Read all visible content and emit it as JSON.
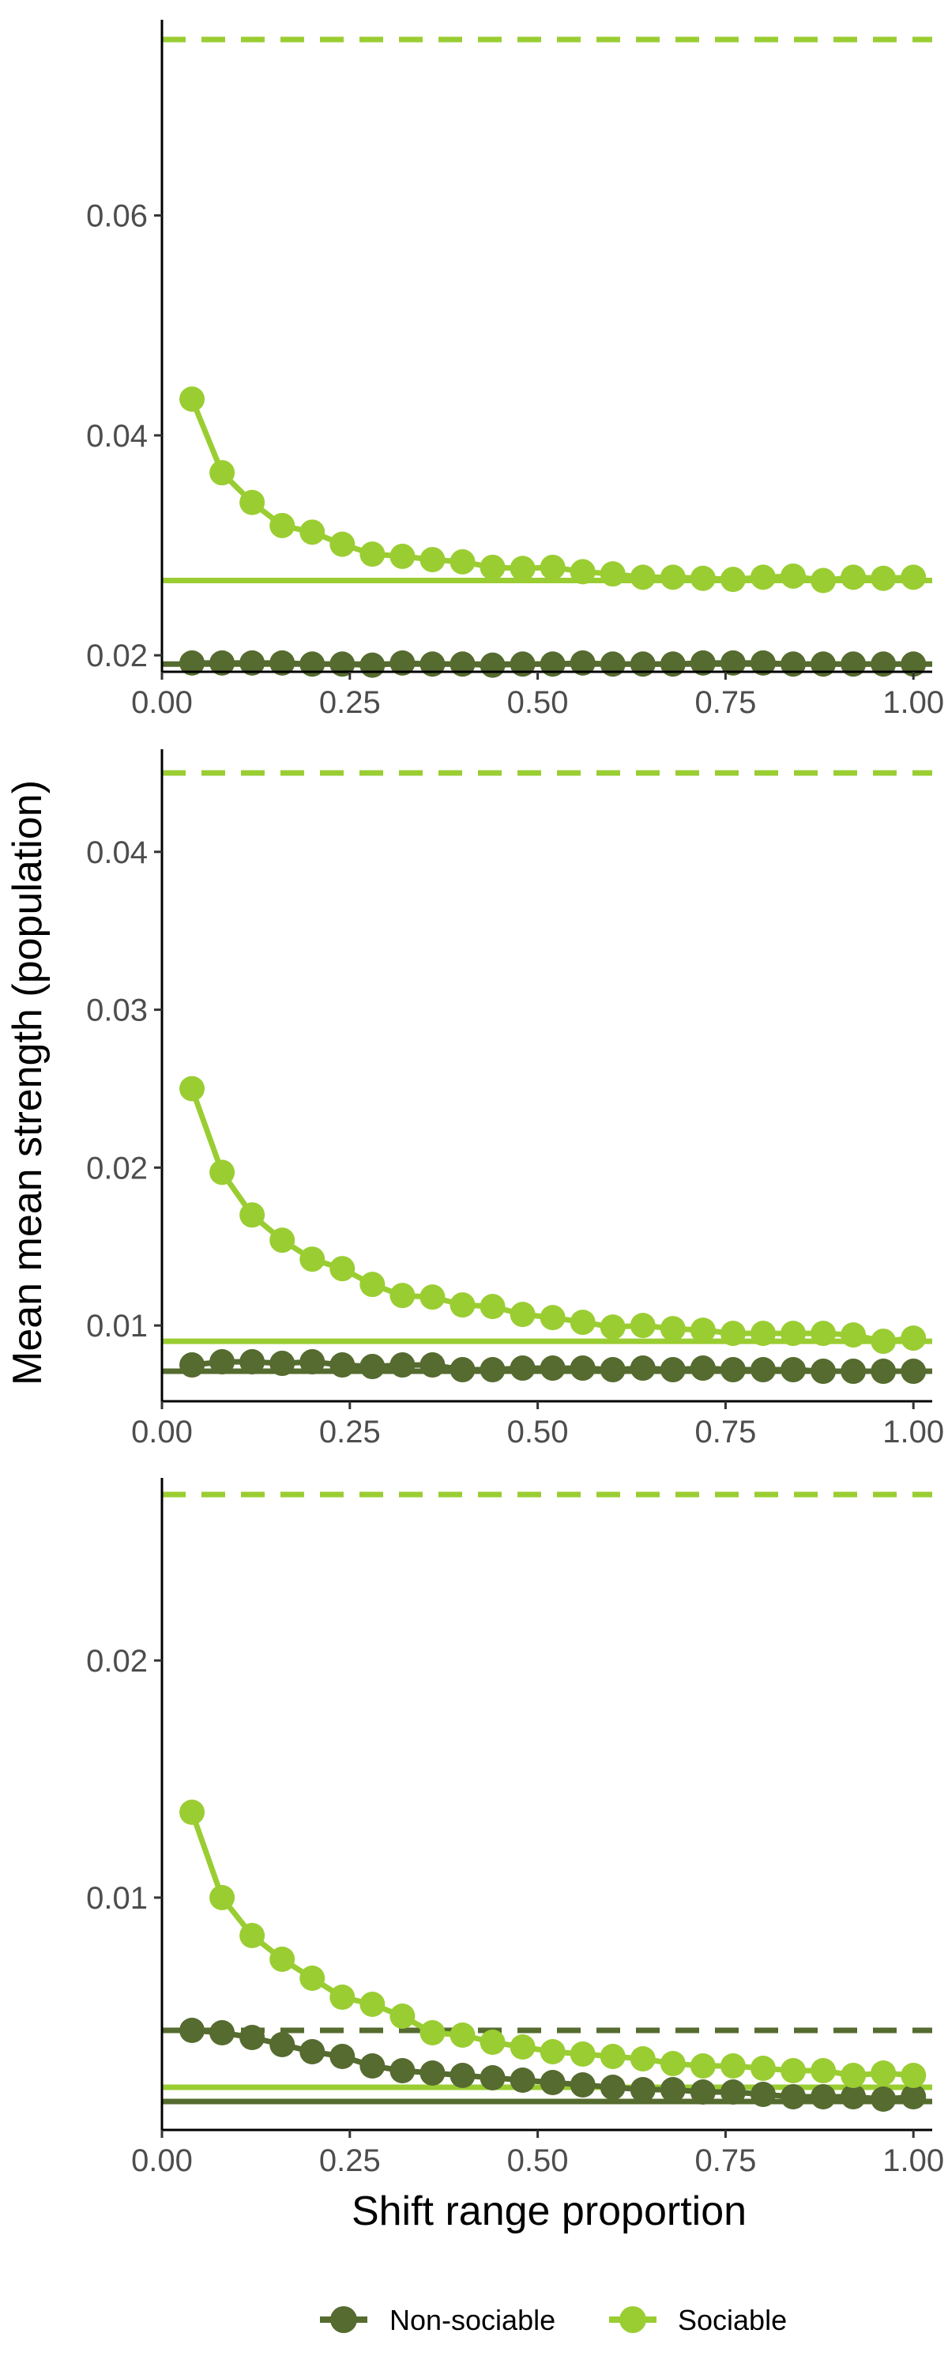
{
  "colors": {
    "non_sociable": "#556b2f",
    "sociable": "#9acd32",
    "axis": "#000000",
    "tick_label": "#4d4d4d"
  },
  "chart_data": [
    {
      "type": "line",
      "panel": 1,
      "xlim": [
        0,
        1.025
      ],
      "ylim": [
        0.0185,
        0.0778
      ],
      "x_ticks": [
        0,
        0.25,
        0.5,
        0.75,
        1
      ],
      "x_tick_labels": [
        "0.00",
        "0.25",
        "0.50",
        "0.75",
        "1.00"
      ],
      "y_ticks": [
        0.02,
        0.04,
        0.06
      ],
      "y_tick_labels": [
        "0.02",
        "0.04",
        "0.06"
      ],
      "x": [
        0.04,
        0.08,
        0.12,
        0.16,
        0.2,
        0.24,
        0.28,
        0.32,
        0.36,
        0.4,
        0.44,
        0.48,
        0.52,
        0.56,
        0.6,
        0.64,
        0.68,
        0.72,
        0.76,
        0.8,
        0.84,
        0.88,
        0.92,
        0.96,
        1.0
      ],
      "series": [
        {
          "name": "Non-sociable",
          "color": "#556b2f",
          "values": [
            0.0193,
            0.0193,
            0.0193,
            0.0193,
            0.0192,
            0.0192,
            0.0191,
            0.0193,
            0.0192,
            0.0192,
            0.0191,
            0.0192,
            0.0192,
            0.0193,
            0.0192,
            0.0192,
            0.0192,
            0.0193,
            0.0193,
            0.0193,
            0.0192,
            0.0192,
            0.0192,
            0.0192,
            0.0192
          ],
          "hline_solid": 0.0192
        },
        {
          "name": "Sociable",
          "color": "#9acd32",
          "values": [
            0.0433,
            0.0366,
            0.0339,
            0.0318,
            0.0312,
            0.0301,
            0.0292,
            0.029,
            0.0287,
            0.0285,
            0.028,
            0.0279,
            0.028,
            0.0276,
            0.0274,
            0.0271,
            0.0271,
            0.027,
            0.0269,
            0.0271,
            0.0272,
            0.0268,
            0.0271,
            0.027,
            0.0271
          ],
          "hline_solid": 0.0268,
          "hline_dashed": 0.076
        }
      ]
    },
    {
      "type": "line",
      "panel": 2,
      "xlim": [
        0,
        1.025
      ],
      "ylim": [
        0.0052,
        0.0465
      ],
      "x_ticks": [
        0,
        0.25,
        0.5,
        0.75,
        1
      ],
      "x_tick_labels": [
        "0.00",
        "0.25",
        "0.50",
        "0.75",
        "1.00"
      ],
      "y_ticks": [
        0.01,
        0.02,
        0.03,
        0.04
      ],
      "y_tick_labels": [
        "0.01",
        "0.02",
        "0.03",
        "0.04"
      ],
      "x": [
        0.04,
        0.08,
        0.12,
        0.16,
        0.2,
        0.24,
        0.28,
        0.32,
        0.36,
        0.4,
        0.44,
        0.48,
        0.52,
        0.56,
        0.6,
        0.64,
        0.68,
        0.72,
        0.76,
        0.8,
        0.84,
        0.88,
        0.92,
        0.96,
        1.0
      ],
      "series": [
        {
          "name": "Non-sociable",
          "color": "#556b2f",
          "values": [
            0.0075,
            0.0077,
            0.0077,
            0.0076,
            0.0077,
            0.0075,
            0.0074,
            0.0075,
            0.0075,
            0.0072,
            0.0072,
            0.0073,
            0.0073,
            0.0073,
            0.0072,
            0.0073,
            0.0072,
            0.0073,
            0.0072,
            0.0072,
            0.0072,
            0.0071,
            0.0071,
            0.0071,
            0.0071
          ],
          "hline_solid": 0.0071
        },
        {
          "name": "Sociable",
          "color": "#9acd32",
          "values": [
            0.025,
            0.0197,
            0.017,
            0.0154,
            0.0142,
            0.0136,
            0.0126,
            0.0119,
            0.0118,
            0.0113,
            0.0112,
            0.0107,
            0.0105,
            0.0102,
            0.0099,
            0.01,
            0.0098,
            0.0097,
            0.0095,
            0.0095,
            0.0095,
            0.0095,
            0.0094,
            0.009,
            0.0092
          ],
          "hline_solid": 0.009,
          "hline_dashed": 0.045
        }
      ]
    },
    {
      "type": "line",
      "panel": 3,
      "xlim": [
        0,
        1.025
      ],
      "ylim": [
        0.0002,
        0.0277
      ],
      "x_ticks": [
        0,
        0.25,
        0.5,
        0.75,
        1
      ],
      "x_tick_labels": [
        "0.00",
        "0.25",
        "0.50",
        "0.75",
        "1.00"
      ],
      "y_ticks": [
        0.01,
        0.02
      ],
      "y_tick_labels": [
        "0.01",
        "0.02"
      ],
      "x": [
        0.04,
        0.08,
        0.12,
        0.16,
        0.2,
        0.24,
        0.28,
        0.32,
        0.36,
        0.4,
        0.44,
        0.48,
        0.52,
        0.56,
        0.6,
        0.64,
        0.68,
        0.72,
        0.76,
        0.8,
        0.84,
        0.88,
        0.92,
        0.96,
        1.0
      ],
      "series": [
        {
          "name": "Non-sociable",
          "color": "#556b2f",
          "values": [
            0.0044,
            0.0043,
            0.0041,
            0.0038,
            0.0035,
            0.0033,
            0.0029,
            0.0027,
            0.0026,
            0.0025,
            0.0024,
            0.0023,
            0.0022,
            0.0021,
            0.002,
            0.0019,
            0.0019,
            0.0018,
            0.0018,
            0.0017,
            0.0016,
            0.0016,
            0.0016,
            0.0015,
            0.0016
          ],
          "hline_solid": 0.0014,
          "hline_dashed": 0.0044
        },
        {
          "name": "Sociable",
          "color": "#9acd32",
          "values": [
            0.0136,
            0.01,
            0.0084,
            0.0074,
            0.0066,
            0.0058,
            0.0055,
            0.005,
            0.0043,
            0.0042,
            0.0039,
            0.0037,
            0.0035,
            0.0034,
            0.0033,
            0.0032,
            0.003,
            0.0029,
            0.0029,
            0.0028,
            0.0027,
            0.0027,
            0.0025,
            0.0026,
            0.0025
          ],
          "hline_solid": 0.002,
          "hline_dashed": 0.027
        }
      ]
    }
  ],
  "axes": {
    "xlabel": "Shift range proportion",
    "ylabel": "Mean mean strength (population)"
  },
  "legend": {
    "position": "bottom",
    "items": [
      {
        "label": "Non-sociable",
        "color": "#556b2f"
      },
      {
        "label": "Sociable",
        "color": "#9acd32"
      }
    ]
  }
}
